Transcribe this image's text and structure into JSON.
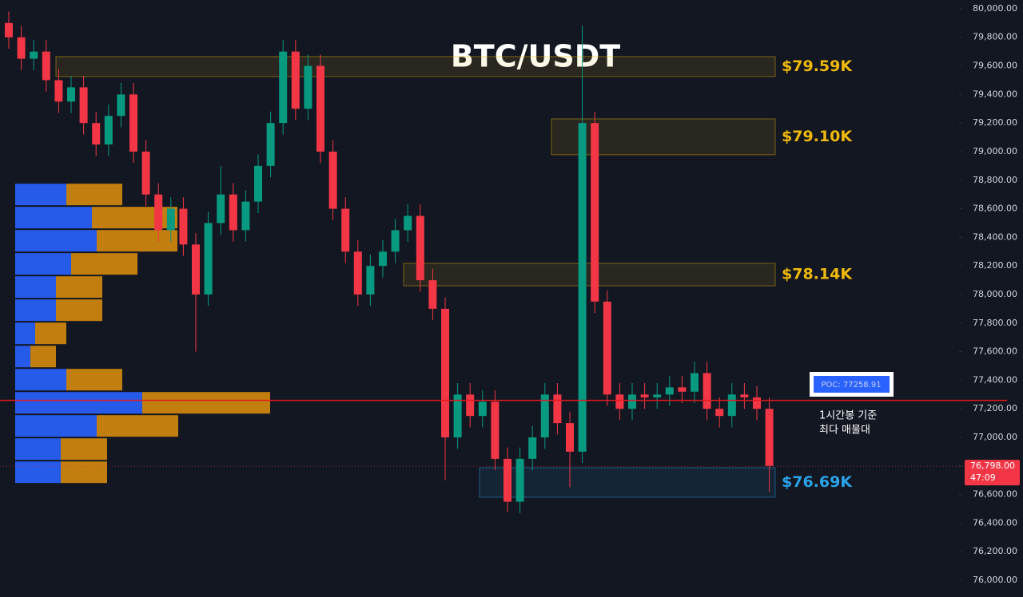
{
  "chart_data": {
    "type": "candlestick",
    "title": "BTC/USDT",
    "open": [
      79900,
      79800,
      79650,
      79700,
      79500,
      79350,
      79450,
      79200,
      79050,
      79250,
      79400,
      79000,
      78700,
      78450,
      78600,
      78350,
      78000,
      78500,
      78700,
      78450,
      78650,
      78900,
      79200,
      79700,
      79300,
      79600,
      79000,
      78600,
      78300,
      78000,
      78200,
      78300,
      78450,
      78550,
      78100,
      77900,
      77000,
      77300,
      77150,
      77250,
      76850,
      76550,
      76850,
      77000,
      77300,
      77100,
      76900,
      79200,
      77950,
      77300,
      77200,
      77300,
      77280,
      77300,
      77350,
      77320,
      77450,
      77200,
      77150,
      77300,
      77280,
      77200
    ],
    "high": [
      79980,
      79880,
      79780,
      79780,
      79580,
      79530,
      79530,
      79280,
      79330,
      79480,
      79480,
      79080,
      78780,
      78680,
      78680,
      78430,
      78580,
      78900,
      78780,
      78730,
      78980,
      79280,
      79780,
      79780,
      79680,
      79680,
      79080,
      78680,
      78380,
      78280,
      78380,
      78530,
      78630,
      78630,
      78180,
      77980,
      77380,
      77380,
      77330,
      77330,
      76930,
      76930,
      77080,
      77380,
      77380,
      77180,
      79880,
      79280,
      78030,
      77380,
      77380,
      77380,
      77380,
      77430,
      77430,
      77530,
      77530,
      77280,
      77380,
      77380,
      77360,
      77280
    ],
    "low": [
      79720,
      79570,
      79570,
      79420,
      79270,
      79270,
      79120,
      78970,
      78970,
      79170,
      78920,
      78620,
      78370,
      78370,
      78270,
      77600,
      77920,
      78420,
      78370,
      78370,
      78570,
      78820,
      79120,
      79220,
      79220,
      78920,
      78520,
      78220,
      77920,
      77920,
      78120,
      78220,
      78370,
      78020,
      77820,
      76700,
      76920,
      77070,
      77070,
      76770,
      76480,
      76470,
      76770,
      76920,
      77020,
      76650,
      76820,
      77870,
      77220,
      77120,
      77120,
      77200,
      77200,
      77220,
      77240,
      77240,
      77120,
      77070,
      77070,
      77200,
      77120,
      76620
    ],
    "close": [
      79800,
      79650,
      79700,
      79500,
      79350,
      79450,
      79200,
      79050,
      79250,
      79400,
      79000,
      78700,
      78450,
      78600,
      78350,
      78000,
      78500,
      78700,
      78450,
      78650,
      78900,
      79200,
      79700,
      79300,
      79600,
      79000,
      78600,
      78300,
      78000,
      78200,
      78300,
      78450,
      78550,
      78100,
      77900,
      77000,
      77300,
      77150,
      77250,
      76850,
      76550,
      76850,
      77000,
      77300,
      77100,
      76900,
      79200,
      77950,
      77300,
      77200,
      77300,
      77280,
      77300,
      77350,
      77320,
      77450,
      77200,
      77150,
      77300,
      77280,
      77200,
      76800
    ],
    "up_color": "#089981",
    "down_color": "#f23645",
    "ylim": [
      75883,
      80061
    ],
    "yticks": [
      {
        "value": 76000,
        "label": "76,000.00"
      },
      {
        "value": 76200,
        "label": "76,200.00"
      },
      {
        "value": 76400,
        "label": "76,400.00"
      },
      {
        "value": 76600,
        "label": "76,600.00"
      },
      {
        "value": 76800,
        "label": "76,800.00"
      },
      {
        "value": 77000,
        "label": "77,000.00"
      },
      {
        "value": 77200,
        "label": "77,200.00"
      },
      {
        "value": 77400,
        "label": "77,400.00"
      },
      {
        "value": 77600,
        "label": "77,600.00"
      },
      {
        "value": 77800,
        "label": "77,800.00"
      },
      {
        "value": 78000,
        "label": "78,000.00"
      },
      {
        "value": 78200,
        "label": "78,200.00"
      },
      {
        "value": 78400,
        "label": "78,400.00"
      },
      {
        "value": 78600,
        "label": "78,600.00"
      },
      {
        "value": 78800,
        "label": "78,800.00"
      },
      {
        "value": 79000,
        "label": "79,000.00"
      },
      {
        "value": 79200,
        "label": "79,200.00"
      },
      {
        "value": 79400,
        "label": "79,400.00"
      },
      {
        "value": 79600,
        "label": "79,600.00"
      },
      {
        "value": 79800,
        "label": "79,800.00"
      },
      {
        "value": 80000,
        "label": "80,000.00"
      }
    ],
    "volume_profile": {
      "bins": [
        78781,
        78619,
        78457,
        78295,
        78133,
        77971,
        77809,
        77647,
        77485,
        77323,
        77161,
        76999,
        76837,
        76675
      ],
      "buy": [
        64,
        96,
        102,
        70,
        51,
        51,
        25,
        19,
        64,
        159,
        102,
        57,
        57
      ],
      "sell": [
        70,
        107,
        101,
        83,
        58,
        58,
        39,
        32,
        70,
        160,
        102,
        58,
        58
      ],
      "buy_color": "#2962ff",
      "sell_color": "#d68a0c"
    },
    "zones": [
      {
        "label": "$79.59K",
        "top": 79665,
        "bottom": 79525,
        "color": "#f0b90b"
      },
      {
        "label": "$79.10K",
        "top": 79229,
        "bottom": 78978,
        "color": "#f0b90b"
      },
      {
        "label": "$78.14K",
        "top": 78218,
        "bottom": 78061,
        "color": "#f0b90b"
      },
      {
        "label": "$76.69K",
        "top": 76788,
        "bottom": 76581,
        "color": "#2aa3e8"
      }
    ],
    "poc": {
      "value": 77258.91,
      "label": "POC: 77258.91",
      "color": "#e5191e"
    },
    "annotation": [
      "1시간봉 기준",
      "최다 매물대"
    ],
    "last_price": {
      "value": 76798,
      "label": "76,798.00",
      "countdown": "47:09"
    }
  }
}
